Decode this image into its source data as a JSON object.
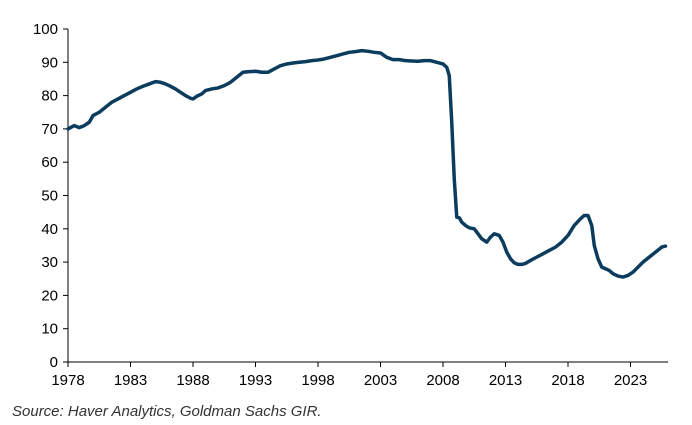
{
  "chart_data": {
    "type": "line",
    "title": "",
    "xlabel": "",
    "ylabel": "",
    "xlim": [
      1978,
      2026
    ],
    "ylim": [
      0,
      100
    ],
    "grid": false,
    "legend": "none",
    "x_ticks": [
      "1978",
      "1983",
      "1988",
      "1993",
      "1998",
      "2003",
      "2008",
      "2013",
      "2018",
      "2023"
    ],
    "y_ticks": [
      "0",
      "10",
      "20",
      "30",
      "40",
      "50",
      "60",
      "70",
      "80",
      "90",
      "100"
    ],
    "series": [
      {
        "color": "#0b3c5d",
        "x": [
          1978.0,
          1978.5,
          1978.9,
          1979.3,
          1979.7,
          1980.0,
          1980.5,
          1981.0,
          1981.5,
          1982.0,
          1982.5,
          1983.0,
          1983.5,
          1984.0,
          1984.5,
          1985.0,
          1985.4,
          1985.8,
          1986.2,
          1986.6,
          1987.0,
          1987.4,
          1987.8,
          1988.0,
          1988.3,
          1988.7,
          1989.0,
          1989.5,
          1990.0,
          1990.5,
          1991.0,
          1991.5,
          1992.0,
          1992.5,
          1993.0,
          1993.5,
          1994.0,
          1994.5,
          1995.0,
          1995.5,
          1996.0,
          1996.5,
          1997.0,
          1997.5,
          1998.0,
          1998.5,
          1999.0,
          1999.5,
          2000.0,
          2000.5,
          2001.0,
          2001.5,
          2002.0,
          2002.5,
          2003.0,
          2003.5,
          2004.0,
          2004.5,
          2005.0,
          2005.5,
          2006.0,
          2006.5,
          2007.0,
          2007.5,
          2008.0,
          2008.3,
          2008.5,
          2008.7,
          2008.9,
          2009.1,
          2009.3,
          2009.5,
          2009.8,
          2010.1,
          2010.5,
          2010.8,
          2011.1,
          2011.5,
          2011.8,
          2012.1,
          2012.5,
          2012.8,
          2013.1,
          2013.4,
          2013.7,
          2014.0,
          2014.3,
          2014.6,
          2015.0,
          2015.5,
          2016.0,
          2016.5,
          2017.0,
          2017.5,
          2018.0,
          2018.5,
          2019.0,
          2019.3,
          2019.6,
          2019.9,
          2020.1,
          2020.4,
          2020.7,
          2021.0,
          2021.3,
          2021.6,
          2022.0,
          2022.4,
          2022.8,
          2023.2,
          2023.6,
          2024.0,
          2024.5,
          2025.0,
          2025.5,
          2025.8
        ],
        "y": [
          70.0,
          71.0,
          70.4,
          71.0,
          72.0,
          74.0,
          75.0,
          76.5,
          78.0,
          79.0,
          80.0,
          81.0,
          82.0,
          82.8,
          83.5,
          84.2,
          84.0,
          83.5,
          82.8,
          82.0,
          81.0,
          80.0,
          79.2,
          79.0,
          79.8,
          80.5,
          81.5,
          82.0,
          82.3,
          83.0,
          84.0,
          85.5,
          87.0,
          87.2,
          87.3,
          87.0,
          87.0,
          88.0,
          89.0,
          89.5,
          89.8,
          90.0,
          90.2,
          90.5,
          90.7,
          91.0,
          91.5,
          92.0,
          92.5,
          93.0,
          93.2,
          93.5,
          93.3,
          93.0,
          92.8,
          91.5,
          90.8,
          90.8,
          90.5,
          90.4,
          90.3,
          90.5,
          90.5,
          90.0,
          89.5,
          88.5,
          86.0,
          72.0,
          55.0,
          43.5,
          43.3,
          42.0,
          41.0,
          40.3,
          40.0,
          38.5,
          37.0,
          36.0,
          37.5,
          38.5,
          38.0,
          36.0,
          33.0,
          31.0,
          29.8,
          29.3,
          29.3,
          29.6,
          30.5,
          31.5,
          32.5,
          33.5,
          34.5,
          36.0,
          38.0,
          41.0,
          43.0,
          44.0,
          44.0,
          41.0,
          35.0,
          31.0,
          28.5,
          28.0,
          27.5,
          26.5,
          25.8,
          25.5,
          26.0,
          27.0,
          28.5,
          30.0,
          31.5,
          33.0,
          34.5,
          34.8
        ]
      }
    ]
  },
  "source": "Source: Haver Analytics, Goldman Sachs GIR."
}
